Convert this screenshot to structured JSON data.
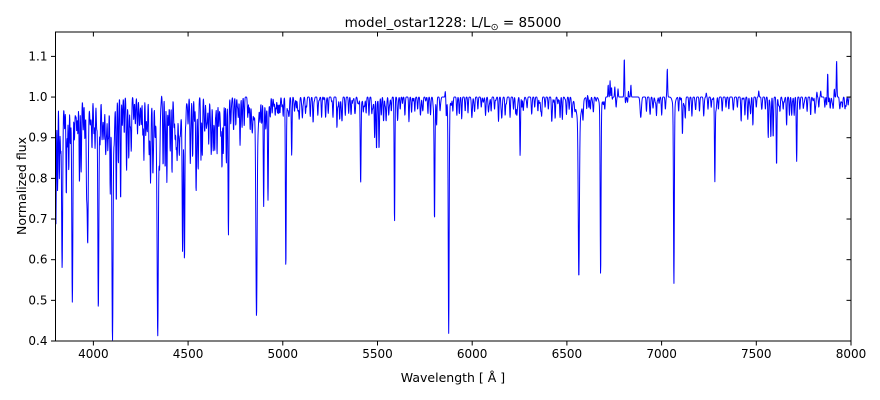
{
  "figure": {
    "background": "#ffffff",
    "title_prefix": "model_ostar1228: L/L",
    "title_sub": "⊙",
    "title_suffix": " = 85000",
    "xlabel": "Wavelength [ Å ]",
    "ylabel": "Normalized flux"
  },
  "chart_data": {
    "type": "line",
    "title": "model_ostar1228: L/L⊙ = 85000",
    "xlabel": "Wavelength [ Å ]",
    "ylabel": "Normalized flux",
    "line_color": "#0000ff",
    "frame_color": "#000000",
    "grid": false,
    "legend": null,
    "xlim": [
      3800,
      8000
    ],
    "ylim": [
      0.4,
      1.16
    ],
    "xticks": [
      4000,
      4500,
      5000,
      5500,
      6000,
      6500,
      7000,
      7500,
      8000
    ],
    "xtick_labels": [
      "4000",
      "4500",
      "5000",
      "5500",
      "6000",
      "6500",
      "7000",
      "7500",
      "8000"
    ],
    "yticks": [
      0.4,
      0.5,
      0.6,
      0.7,
      0.8,
      0.9,
      1.0,
      1.1
    ],
    "ytick_labels": [
      "0.4",
      "0.5",
      "0.6",
      "0.7",
      "0.8",
      "0.9",
      "1.0",
      "1.1"
    ],
    "continuum_flux": 1.0,
    "sample_step_angstrom": 1.2,
    "absorption_lines": [
      [
        3802,
        0.7,
        2.2
      ],
      [
        3811,
        0.78,
        2
      ],
      [
        3820,
        0.84,
        2
      ],
      [
        3827,
        0.9,
        2
      ],
      [
        3835,
        0.63,
        2.8
      ],
      [
        3848,
        0.94,
        2
      ],
      [
        3857,
        0.78,
        2
      ],
      [
        3863,
        0.9,
        2
      ],
      [
        3870,
        0.82,
        2
      ],
      [
        3878,
        0.93,
        2
      ],
      [
        3889,
        0.565,
        2.8
      ],
      [
        3900,
        0.91,
        2
      ],
      [
        3912,
        0.945,
        2
      ],
      [
        3918,
        0.91,
        2
      ],
      [
        3927,
        0.85,
        2
      ],
      [
        3935,
        0.84,
        2
      ],
      [
        3947,
        0.95,
        2
      ],
      [
        3955,
        0.93,
        2
      ],
      [
        3964,
        0.85,
        2
      ],
      [
        3970,
        0.69,
        2.8
      ],
      [
        3983,
        0.95,
        2
      ],
      [
        3993,
        0.89,
        2
      ],
      [
        4003,
        0.95,
        2
      ],
      [
        4009,
        0.88,
        2
      ],
      [
        4026,
        0.54,
        2.6
      ],
      [
        4035,
        0.94,
        2
      ],
      [
        4046,
        0.95,
        2
      ],
      [
        4056,
        0.945,
        2
      ],
      [
        4064,
        0.91,
        2
      ],
      [
        4070,
        0.93,
        2
      ],
      [
        4076,
        0.88,
        2
      ],
      [
        4089,
        0.8,
        2
      ],
      [
        4101,
        0.51,
        3
      ],
      [
        4110,
        0.94,
        2
      ],
      [
        4121,
        0.78,
        2
      ],
      [
        4132,
        0.85,
        2
      ],
      [
        4144,
        0.76,
        2
      ],
      [
        4153,
        0.93,
        2
      ],
      [
        4163,
        0.94,
        2
      ],
      [
        4175,
        0.85,
        2
      ],
      [
        4187,
        0.88,
        2
      ],
      [
        4200,
        0.885,
        2
      ],
      [
        4213,
        0.945,
        2
      ],
      [
        4222,
        0.94,
        2
      ],
      [
        4233,
        0.92,
        2
      ],
      [
        4243,
        0.945,
        2
      ],
      [
        4253,
        0.93,
        2
      ],
      [
        4261,
        0.945,
        2
      ],
      [
        4267,
        0.9,
        2
      ],
      [
        4276,
        0.94,
        2
      ],
      [
        4285,
        0.93,
        2
      ],
      [
        4294,
        0.945,
        2
      ],
      [
        4302,
        0.87,
        2
      ],
      [
        4314,
        0.88,
        2
      ],
      [
        4326,
        0.93,
        2
      ],
      [
        4340,
        0.53,
        3
      ],
      [
        4351,
        0.94,
        2
      ],
      [
        4368,
        0.85,
        2
      ],
      [
        4379,
        0.86,
        2
      ],
      [
        4388,
        0.79,
        2
      ],
      [
        4397,
        0.93,
        2
      ],
      [
        4405,
        0.93,
        2
      ],
      [
        4415,
        0.85,
        2
      ],
      [
        4426,
        0.94,
        2
      ],
      [
        4437,
        0.92,
        2
      ],
      [
        4442,
        0.89,
        2
      ],
      [
        4454,
        0.9,
        2
      ],
      [
        4471,
        0.66,
        2.4
      ],
      [
        4481,
        0.62,
        2.2
      ],
      [
        4500,
        0.95,
        2
      ],
      [
        4512,
        0.89,
        2
      ],
      [
        4524,
        0.88,
        2
      ],
      [
        4534,
        0.94,
        2
      ],
      [
        4542,
        0.86,
        2
      ],
      [
        4553,
        0.83,
        2
      ],
      [
        4568,
        0.845,
        2
      ],
      [
        4575,
        0.86,
        2
      ],
      [
        4586,
        0.93,
        2
      ],
      [
        4596,
        0.94,
        2
      ],
      [
        4609,
        0.885,
        2
      ],
      [
        4623,
        0.89,
        2
      ],
      [
        4632,
        0.93,
        2
      ],
      [
        4641,
        0.88,
        2
      ],
      [
        4653,
        0.86,
        2
      ],
      [
        4662,
        0.93,
        2
      ],
      [
        4673,
        0.92,
        2
      ],
      [
        4679,
        0.855,
        2
      ],
      [
        4686,
        0.86,
        2
      ],
      [
        4694,
        0.93,
        2
      ],
      [
        4702,
        0.84,
        2
      ],
      [
        4713,
        0.66,
        2.2
      ],
      [
        4725,
        0.94,
        2
      ],
      [
        4740,
        0.93,
        2
      ],
      [
        4752,
        0.93,
        2
      ],
      [
        4765,
        0.95,
        2
      ],
      [
        4775,
        0.945,
        2
      ],
      [
        4785,
        0.925,
        2
      ],
      [
        4796,
        0.95,
        2
      ],
      [
        4815,
        0.95,
        2
      ],
      [
        4828,
        0.955,
        2
      ],
      [
        4840,
        0.95,
        2.5
      ],
      [
        4861,
        0.54,
        3.2
      ],
      [
        4880,
        0.955,
        2
      ],
      [
        4890,
        0.95,
        2
      ],
      [
        4899,
        0.79,
        2
      ],
      [
        4910,
        0.95,
        2
      ],
      [
        4922,
        0.75,
        2.2
      ],
      [
        4934,
        0.955,
        2
      ],
      [
        4944,
        0.96,
        2
      ],
      [
        4960,
        0.955,
        2
      ],
      [
        4972,
        0.96,
        2
      ],
      [
        4985,
        0.96,
        2
      ],
      [
        5002,
        0.955,
        2
      ],
      [
        5016,
        0.59,
        2.2
      ],
      [
        5032,
        0.96,
        2
      ],
      [
        5047,
        0.86,
        2
      ],
      [
        5062,
        0.965,
        2
      ],
      [
        5087,
        0.96,
        2
      ],
      [
        5104,
        0.965,
        2
      ],
      [
        5120,
        0.96,
        2
      ],
      [
        5145,
        0.955,
        2
      ],
      [
        5160,
        0.96,
        2
      ],
      [
        5185,
        0.955,
        2
      ],
      [
        5205,
        0.95,
        2
      ],
      [
        5226,
        0.95,
        2
      ],
      [
        5240,
        0.96,
        2
      ],
      [
        5265,
        0.95,
        2
      ],
      [
        5286,
        0.945,
        2
      ],
      [
        5300,
        0.955,
        2
      ],
      [
        5313,
        0.95,
        2
      ],
      [
        5330,
        0.955,
        2
      ],
      [
        5348,
        0.96,
        2
      ],
      [
        5360,
        0.96,
        2
      ],
      [
        5380,
        0.965,
        2
      ],
      [
        5411,
        0.8,
        2.2
      ],
      [
        5425,
        0.965,
        2
      ],
      [
        5440,
        0.96,
        2
      ],
      [
        5455,
        0.955,
        2
      ],
      [
        5470,
        0.96,
        2
      ],
      [
        5485,
        0.9,
        2
      ],
      [
        5495,
        0.87,
        2
      ],
      [
        5508,
        0.89,
        2
      ],
      [
        5520,
        0.955,
        2
      ],
      [
        5532,
        0.95,
        2
      ],
      [
        5545,
        0.96,
        2
      ],
      [
        5559,
        0.96,
        2
      ],
      [
        5573,
        0.965,
        2
      ],
      [
        5590,
        0.69,
        2
      ],
      [
        5606,
        0.965,
        2
      ],
      [
        5620,
        0.97,
        2
      ],
      [
        5645,
        0.965,
        2
      ],
      [
        5666,
        0.97,
        2
      ],
      [
        5680,
        0.97,
        2
      ],
      [
        5697,
        0.965,
        2
      ],
      [
        5712,
        0.97,
        2
      ],
      [
        5726,
        0.97,
        2
      ],
      [
        5740,
        0.97,
        2
      ],
      [
        5766,
        0.97,
        2
      ],
      [
        5780,
        0.97,
        2
      ],
      [
        5801,
        0.71,
        2
      ],
      [
        5812,
        0.93,
        2
      ],
      [
        5830,
        0.97,
        2
      ],
      [
        5876,
        0.46,
        2.4
      ],
      [
        5898,
        0.965,
        2
      ],
      [
        5919,
        0.955,
        2
      ],
      [
        5932,
        0.965,
        2
      ],
      [
        5945,
        0.965,
        2
      ],
      [
        5963,
        0.965,
        2
      ],
      [
        5978,
        0.97,
        2
      ],
      [
        5998,
        0.96,
        2
      ],
      [
        6013,
        0.97,
        2
      ],
      [
        6030,
        0.97,
        2
      ],
      [
        6048,
        0.975,
        2
      ],
      [
        6070,
        0.97,
        2
      ],
      [
        6085,
        0.975,
        2
      ],
      [
        6100,
        0.965,
        2
      ],
      [
        6118,
        0.97,
        2
      ],
      [
        6139,
        0.94,
        2
      ],
      [
        6155,
        0.97,
        2
      ],
      [
        6174,
        0.955,
        2
      ],
      [
        6200,
        0.95,
        2
      ],
      [
        6218,
        0.97,
        2
      ],
      [
        6235,
        0.97,
        2
      ],
      [
        6253,
        0.875,
        2
      ],
      [
        6270,
        0.97,
        2
      ],
      [
        6290,
        0.975,
        2
      ],
      [
        6315,
        0.97,
        2
      ],
      [
        6330,
        0.975,
        2
      ],
      [
        6347,
        0.965,
        2
      ],
      [
        6367,
        0.97,
        2
      ],
      [
        6385,
        0.975,
        2
      ],
      [
        6402,
        0.97,
        2
      ],
      [
        6420,
        0.94,
        2
      ],
      [
        6438,
        0.947,
        2
      ],
      [
        6464,
        0.95,
        2
      ],
      [
        6476,
        0.945,
        2
      ],
      [
        6498,
        0.965,
        2
      ],
      [
        6512,
        0.97,
        2
      ],
      [
        6527,
        0.95,
        2.5
      ],
      [
        6563,
        0.615,
        3
      ],
      [
        6585,
        0.97,
        2
      ],
      [
        6605,
        0.97,
        2
      ],
      [
        6624,
        0.97,
        2
      ],
      [
        6640,
        0.965,
        2
      ],
      [
        6678,
        0.585,
        2.2
      ],
      [
        6700,
        0.97,
        2
      ],
      [
        6760,
        0.975,
        2
      ],
      [
        6890,
        0.95,
        3.5
      ],
      [
        6920,
        0.965,
        2
      ],
      [
        6940,
        0.96,
        2
      ],
      [
        6973,
        0.955,
        2
      ],
      [
        7000,
        0.965,
        2
      ],
      [
        7020,
        0.97,
        2
      ],
      [
        7065,
        0.565,
        2.2
      ],
      [
        7090,
        0.965,
        2
      ],
      [
        7110,
        0.91,
        2
      ],
      [
        7125,
        0.95,
        2
      ],
      [
        7145,
        0.965,
        2
      ],
      [
        7160,
        0.96,
        2
      ],
      [
        7180,
        0.97,
        2
      ],
      [
        7200,
        0.965,
        2
      ],
      [
        7222,
        0.97,
        2
      ],
      [
        7245,
        0.97,
        2
      ],
      [
        7262,
        0.975,
        2
      ],
      [
        7281,
        0.8,
        2
      ],
      [
        7300,
        0.97,
        2
      ],
      [
        7320,
        0.965,
        2
      ],
      [
        7340,
        0.975,
        2
      ],
      [
        7355,
        0.97,
        2
      ],
      [
        7378,
        0.975,
        2
      ],
      [
        7400,
        0.975,
        2
      ],
      [
        7420,
        0.94,
        2
      ],
      [
        7440,
        0.955,
        2
      ],
      [
        7455,
        0.945,
        2
      ],
      [
        7470,
        0.96,
        2
      ],
      [
        7482,
        0.93,
        2
      ],
      [
        7500,
        0.975,
        2
      ],
      [
        7530,
        0.975,
        2
      ],
      [
        7548,
        0.97,
        2
      ],
      [
        7563,
        0.9,
        2
      ],
      [
        7577,
        0.905,
        2
      ],
      [
        7589,
        0.9,
        2
      ],
      [
        7607,
        0.83,
        2
      ],
      [
        7625,
        0.965,
        2
      ],
      [
        7642,
        0.97,
        2
      ],
      [
        7660,
        0.93,
        2
      ],
      [
        7675,
        0.955,
        2
      ],
      [
        7687,
        0.955,
        2
      ],
      [
        7700,
        0.955,
        2
      ],
      [
        7713,
        0.845,
        2
      ],
      [
        7730,
        0.97,
        2
      ],
      [
        7748,
        0.975,
        2
      ],
      [
        7768,
        0.97,
        2
      ],
      [
        7787,
        0.955,
        2
      ],
      [
        7810,
        0.96,
        2
      ],
      [
        7830,
        0.975,
        2
      ],
      [
        7862,
        0.975,
        2
      ],
      [
        7890,
        0.975,
        2
      ],
      [
        7906,
        0.975,
        2
      ],
      [
        7940,
        0.98,
        2
      ],
      [
        7955,
        0.975,
        2
      ],
      [
        7968,
        0.975,
        2
      ],
      [
        7985,
        0.98,
        2
      ],
      [
        3835,
        0.95,
        7
      ],
      [
        3889,
        0.95,
        7
      ],
      [
        3970,
        0.95,
        8
      ],
      [
        4026,
        0.96,
        7
      ],
      [
        4101,
        0.93,
        11
      ],
      [
        4340,
        0.93,
        11
      ],
      [
        4471,
        0.96,
        7
      ],
      [
        4861,
        0.94,
        12
      ],
      [
        6563,
        0.94,
        13
      ],
      [
        5876,
        0.97,
        7
      ],
      [
        6678,
        0.975,
        7
      ],
      [
        7065,
        0.975,
        7
      ]
    ],
    "emission_lines": [
      [
        4360,
        1.015,
        1.6
      ],
      [
        5858,
        1.015,
        1.6
      ],
      [
        6455,
        1.01,
        1.6
      ],
      [
        6608,
        1.01,
        1.5
      ],
      [
        6718,
        1.03,
        1.6
      ],
      [
        6728,
        1.04,
        1.6
      ],
      [
        6736,
        1.03,
        1.6
      ],
      [
        6753,
        1.025,
        1.6
      ],
      [
        6770,
        1.02,
        1.6
      ],
      [
        6803,
        1.105,
        1.8
      ],
      [
        6825,
        1.015,
        1.6
      ],
      [
        6838,
        1.03,
        1.6
      ],
      [
        7030,
        1.07,
        1.8
      ],
      [
        7236,
        1.01,
        1.6
      ],
      [
        7513,
        1.015,
        1.6
      ],
      [
        7820,
        1.012,
        1.6
      ],
      [
        7840,
        1.015,
        1.6
      ],
      [
        7877,
        1.06,
        1.7
      ],
      [
        7912,
        1.02,
        1.6
      ],
      [
        7924,
        1.09,
        1.7
      ]
    ],
    "micro_fuzz": {
      "seed": 7,
      "regions": [
        {
          "from": 3800,
          "to": 4700,
          "count": 160,
          "max_depth": 0.045
        },
        {
          "from": 4700,
          "to": 5100,
          "count": 50,
          "max_depth": 0.03
        },
        {
          "from": 5100,
          "to": 5900,
          "count": 60,
          "max_depth": 0.025
        },
        {
          "from": 5900,
          "to": 6500,
          "count": 40,
          "max_depth": 0.02
        },
        {
          "from": 6500,
          "to": 8000,
          "count": 60,
          "max_depth": 0.02
        }
      ]
    }
  }
}
